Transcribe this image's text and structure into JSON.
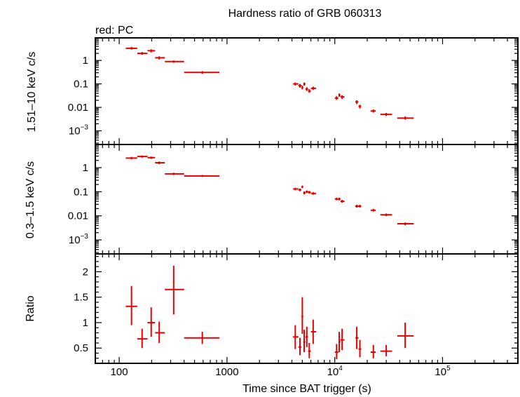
{
  "colors": {
    "series": "#e60000",
    "axis": "#000000",
    "background": "#ffffff"
  },
  "chart_data": {
    "type": "scatter",
    "title": "Hardness ratio of GRB 060313",
    "subtitle": "red: PC",
    "xlabel": "Time since BAT trigger (s)",
    "xscale": "log",
    "xlim": [
      60,
      500000
    ],
    "x_ticks": [
      {
        "value": 100,
        "label": "100"
      },
      {
        "value": 1000,
        "label": "1000"
      },
      {
        "value": 10000,
        "label": "10",
        "exp": "4"
      },
      {
        "value": 100000,
        "label": "10",
        "exp": "5"
      }
    ],
    "panels": [
      {
        "ylabel": "1.51–10 keV c/s",
        "yscale": "log",
        "ylim": [
          0.0003,
          8
        ],
        "y_ticks": [
          {
            "value": 1,
            "label": "1"
          },
          {
            "value": 0.1,
            "label": "0.1"
          },
          {
            "value": 0.01,
            "label": "0.01"
          },
          {
            "value": 0.001,
            "label": "10",
            "exp": "−3"
          }
        ],
        "points": [
          {
            "x": 130,
            "xlo": 115,
            "xhi": 147,
            "y": 3.3,
            "ylo": 2.9,
            "yhi": 3.8
          },
          {
            "x": 163,
            "xlo": 147,
            "xhi": 183,
            "y": 2.0,
            "ylo": 1.75,
            "yhi": 2.3
          },
          {
            "x": 198,
            "xlo": 183,
            "xhi": 215,
            "y": 2.6,
            "ylo": 2.2,
            "yhi": 3.0
          },
          {
            "x": 235,
            "xlo": 215,
            "xhi": 265,
            "y": 1.3,
            "ylo": 1.1,
            "yhi": 1.5
          },
          {
            "x": 320,
            "xlo": 265,
            "xhi": 400,
            "y": 0.9,
            "ylo": 0.8,
            "yhi": 1.0
          },
          {
            "x": 590,
            "xlo": 400,
            "xhi": 850,
            "y": 0.31,
            "ylo": 0.27,
            "yhi": 0.35
          },
          {
            "x": 4300,
            "xlo": 4100,
            "xhi": 4600,
            "y": 0.1,
            "ylo": 0.085,
            "yhi": 0.115
          },
          {
            "x": 4750,
            "xlo": 4600,
            "xhi": 4900,
            "y": 0.085,
            "ylo": 0.07,
            "yhi": 0.1
          },
          {
            "x": 5000,
            "xlo": 4900,
            "xhi": 5100,
            "y": 0.07,
            "ylo": 0.058,
            "yhi": 0.085
          },
          {
            "x": 5200,
            "xlo": 5100,
            "xhi": 5350,
            "y": 0.1,
            "ylo": 0.085,
            "yhi": 0.115
          },
          {
            "x": 5500,
            "xlo": 5350,
            "xhi": 5650,
            "y": 0.06,
            "ylo": 0.05,
            "yhi": 0.072
          },
          {
            "x": 5800,
            "xlo": 5650,
            "xhi": 6000,
            "y": 0.05,
            "ylo": 0.042,
            "yhi": 0.06
          },
          {
            "x": 6300,
            "xlo": 6000,
            "xhi": 6700,
            "y": 0.065,
            "ylo": 0.055,
            "yhi": 0.077
          },
          {
            "x": 10400,
            "xlo": 10000,
            "xhi": 10800,
            "y": 0.025,
            "ylo": 0.021,
            "yhi": 0.03
          },
          {
            "x": 11000,
            "xlo": 10800,
            "xhi": 11300,
            "y": 0.033,
            "ylo": 0.028,
            "yhi": 0.039
          },
          {
            "x": 11700,
            "xlo": 11300,
            "xhi": 12300,
            "y": 0.028,
            "ylo": 0.023,
            "yhi": 0.033
          },
          {
            "x": 16000,
            "xlo": 15500,
            "xhi": 16600,
            "y": 0.017,
            "ylo": 0.014,
            "yhi": 0.02
          },
          {
            "x": 17100,
            "xlo": 16600,
            "xhi": 17600,
            "y": 0.011,
            "ylo": 0.009,
            "yhi": 0.013
          },
          {
            "x": 22800,
            "xlo": 21500,
            "xhi": 24000,
            "y": 0.007,
            "ylo": 0.006,
            "yhi": 0.0082
          },
          {
            "x": 30000,
            "xlo": 26500,
            "xhi": 34000,
            "y": 0.005,
            "ylo": 0.0043,
            "yhi": 0.0058
          },
          {
            "x": 45000,
            "xlo": 38000,
            "xhi": 54000,
            "y": 0.0035,
            "ylo": 0.003,
            "yhi": 0.0041
          }
        ]
      },
      {
        "ylabel": "0.3–1.5 keV c/s",
        "yscale": "log",
        "ylim": [
          0.0003,
          8
        ],
        "y_ticks": [
          {
            "value": 1,
            "label": "1"
          },
          {
            "value": 0.1,
            "label": "0.1"
          },
          {
            "value": 0.01,
            "label": "0.01"
          },
          {
            "value": 0.001,
            "label": "10",
            "exp": "−3"
          }
        ],
        "points": [
          {
            "x": 130,
            "xlo": 115,
            "xhi": 147,
            "y": 2.5,
            "ylo": 2.2,
            "yhi": 2.8
          },
          {
            "x": 163,
            "xlo": 147,
            "xhi": 183,
            "y": 2.9,
            "ylo": 2.6,
            "yhi": 3.2
          },
          {
            "x": 198,
            "xlo": 183,
            "xhi": 215,
            "y": 2.6,
            "ylo": 2.3,
            "yhi": 2.9
          },
          {
            "x": 235,
            "xlo": 215,
            "xhi": 265,
            "y": 1.6,
            "ylo": 1.4,
            "yhi": 1.8
          },
          {
            "x": 320,
            "xlo": 265,
            "xhi": 400,
            "y": 0.55,
            "ylo": 0.49,
            "yhi": 0.62
          },
          {
            "x": 590,
            "xlo": 400,
            "xhi": 850,
            "y": 0.45,
            "ylo": 0.41,
            "yhi": 0.5
          },
          {
            "x": 4300,
            "xlo": 4100,
            "xhi": 4600,
            "y": 0.13,
            "ylo": 0.115,
            "yhi": 0.147
          },
          {
            "x": 4750,
            "xlo": 4600,
            "xhi": 4900,
            "y": 0.12,
            "ylo": 0.105,
            "yhi": 0.136
          },
          {
            "x": 5000,
            "xlo": 4900,
            "xhi": 5100,
            "y": 0.16,
            "ylo": 0.14,
            "yhi": 0.18
          },
          {
            "x": 5200,
            "xlo": 5100,
            "xhi": 5350,
            "y": 0.09,
            "ylo": 0.078,
            "yhi": 0.103
          },
          {
            "x": 5500,
            "xlo": 5350,
            "xhi": 5650,
            "y": 0.1,
            "ylo": 0.088,
            "yhi": 0.113
          },
          {
            "x": 5800,
            "xlo": 5650,
            "xhi": 6000,
            "y": 0.095,
            "ylo": 0.083,
            "yhi": 0.108
          },
          {
            "x": 6300,
            "xlo": 6000,
            "xhi": 6700,
            "y": 0.085,
            "ylo": 0.075,
            "yhi": 0.097
          },
          {
            "x": 10400,
            "xlo": 10000,
            "xhi": 10800,
            "y": 0.05,
            "ylo": 0.044,
            "yhi": 0.057
          },
          {
            "x": 11000,
            "xlo": 10800,
            "xhi": 11300,
            "y": 0.05,
            "ylo": 0.044,
            "yhi": 0.057
          },
          {
            "x": 11700,
            "xlo": 11300,
            "xhi": 12300,
            "y": 0.04,
            "ylo": 0.035,
            "yhi": 0.046
          },
          {
            "x": 16000,
            "xlo": 15500,
            "xhi": 16600,
            "y": 0.025,
            "ylo": 0.022,
            "yhi": 0.029
          },
          {
            "x": 17100,
            "xlo": 16600,
            "xhi": 17600,
            "y": 0.025,
            "ylo": 0.022,
            "yhi": 0.029
          },
          {
            "x": 22800,
            "xlo": 21500,
            "xhi": 24000,
            "y": 0.017,
            "ylo": 0.015,
            "yhi": 0.0195
          },
          {
            "x": 30000,
            "xlo": 26500,
            "xhi": 34000,
            "y": 0.011,
            "ylo": 0.0097,
            "yhi": 0.0125
          },
          {
            "x": 45000,
            "xlo": 38000,
            "xhi": 54000,
            "y": 0.0047,
            "ylo": 0.0041,
            "yhi": 0.0053
          }
        ]
      },
      {
        "ylabel": "Ratio",
        "yscale": "linear",
        "ylim": [
          0.2,
          2.35
        ],
        "y_ticks": [
          {
            "value": 2,
            "label": "2"
          },
          {
            "value": 1.5,
            "label": "1.5"
          },
          {
            "value": 1,
            "label": "1"
          },
          {
            "value": 0.5,
            "label": "0.5"
          }
        ],
        "points": [
          {
            "x": 130,
            "xlo": 115,
            "xhi": 147,
            "y": 1.32,
            "ylo": 0.95,
            "yhi": 1.72
          },
          {
            "x": 163,
            "xlo": 147,
            "xhi": 183,
            "y": 0.68,
            "ylo": 0.5,
            "yhi": 0.88
          },
          {
            "x": 198,
            "xlo": 183,
            "xhi": 215,
            "y": 1.0,
            "ylo": 0.72,
            "yhi": 1.3
          },
          {
            "x": 235,
            "xlo": 215,
            "xhi": 265,
            "y": 0.8,
            "ylo": 0.6,
            "yhi": 1.02
          },
          {
            "x": 320,
            "xlo": 265,
            "xhi": 400,
            "y": 1.65,
            "ylo": 1.16,
            "yhi": 2.12
          },
          {
            "x": 590,
            "xlo": 400,
            "xhi": 850,
            "y": 0.7,
            "ylo": 0.58,
            "yhi": 0.82
          },
          {
            "x": 4300,
            "xlo": 4100,
            "xhi": 4600,
            "y": 0.72,
            "ylo": 0.48,
            "yhi": 0.95
          },
          {
            "x": 4750,
            "xlo": 4600,
            "xhi": 4900,
            "y": 0.52,
            "ylo": 0.36,
            "yhi": 0.7
          },
          {
            "x": 5000,
            "xlo": 4900,
            "xhi": 5100,
            "y": 1.12,
            "ylo": 0.78,
            "yhi": 1.5
          },
          {
            "x": 5200,
            "xlo": 5100,
            "xhi": 5350,
            "y": 0.62,
            "ylo": 0.42,
            "yhi": 0.86
          },
          {
            "x": 5500,
            "xlo": 5350,
            "xhi": 5650,
            "y": 0.72,
            "ylo": 0.52,
            "yhi": 0.92
          },
          {
            "x": 5800,
            "xlo": 5650,
            "xhi": 6000,
            "y": 0.44,
            "ylo": 0.3,
            "yhi": 0.6
          },
          {
            "x": 6300,
            "xlo": 6000,
            "xhi": 6700,
            "y": 0.82,
            "ylo": 0.58,
            "yhi": 1.06
          },
          {
            "x": 10400,
            "xlo": 10000,
            "xhi": 10800,
            "y": 0.42,
            "ylo": 0.28,
            "yhi": 0.58
          },
          {
            "x": 11000,
            "xlo": 10800,
            "xhi": 11300,
            "y": 0.62,
            "ylo": 0.42,
            "yhi": 0.82
          },
          {
            "x": 11700,
            "xlo": 11300,
            "xhi": 12300,
            "y": 0.66,
            "ylo": 0.46,
            "yhi": 0.88
          },
          {
            "x": 16000,
            "xlo": 15500,
            "xhi": 16600,
            "y": 0.7,
            "ylo": 0.48,
            "yhi": 0.92
          },
          {
            "x": 17100,
            "xlo": 16600,
            "xhi": 17600,
            "y": 0.48,
            "ylo": 0.32,
            "yhi": 0.66
          },
          {
            "x": 22800,
            "xlo": 21500,
            "xhi": 24000,
            "y": 0.42,
            "ylo": 0.3,
            "yhi": 0.56
          },
          {
            "x": 30000,
            "xlo": 26500,
            "xhi": 34000,
            "y": 0.44,
            "ylo": 0.34,
            "yhi": 0.56
          },
          {
            "x": 45000,
            "xlo": 38000,
            "xhi": 54000,
            "y": 0.74,
            "ylo": 0.5,
            "yhi": 1.0
          }
        ]
      }
    ]
  }
}
